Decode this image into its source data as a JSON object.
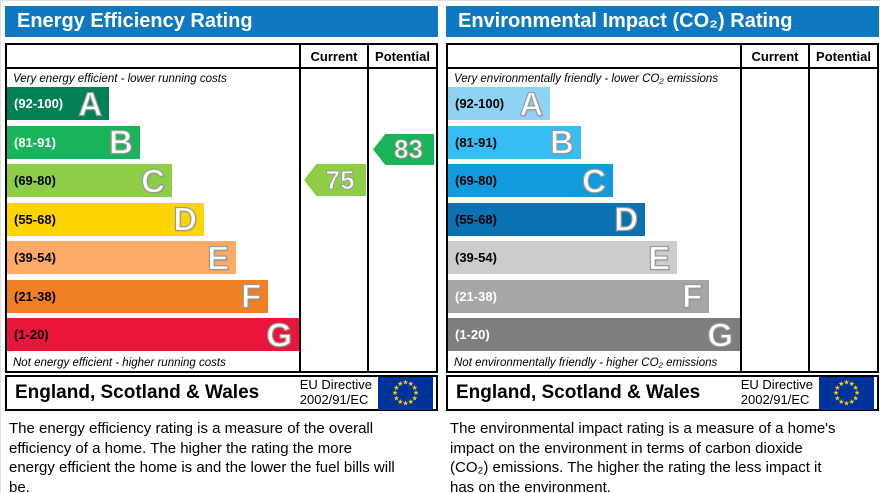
{
  "colors": {
    "header_bg": "#0e79c0",
    "flag_bg": "#003399",
    "flag_star": "#ffcc00",
    "energy_current_arrow": "#8dce46",
    "energy_potential_arrow": "#19b459"
  },
  "panels": {
    "energy": {
      "header": "Energy Efficiency Rating",
      "columns": {
        "current": "Current",
        "potential": "Potential"
      },
      "caption_top": "Very energy efficient - lower running costs",
      "caption_bottom": "Not energy efficient - higher running costs",
      "bands": [
        {
          "letter": "A",
          "label": "(92-100)",
          "color": "#008054",
          "label_color": "#ffffff",
          "width_pct": 35
        },
        {
          "letter": "B",
          "label": "(81-91)",
          "color": "#19b459",
          "label_color": "#ffffff",
          "width_pct": 45.5
        },
        {
          "letter": "C",
          "label": "(69-80)",
          "color": "#8dce46",
          "label_color": "#000000",
          "width_pct": 56.5
        },
        {
          "letter": "D",
          "label": "(55-68)",
          "color": "#ffd500",
          "label_color": "#000000",
          "width_pct": 67.5
        },
        {
          "letter": "E",
          "label": "(39-54)",
          "color": "#fcaa65",
          "label_color": "#000000",
          "width_pct": 78.5
        },
        {
          "letter": "F",
          "label": "(21-38)",
          "color": "#ef8023",
          "label_color": "#000000",
          "width_pct": 89.5
        },
        {
          "letter": "G",
          "label": "(1-20)",
          "color": "#e9153b",
          "label_color": "#000000",
          "width_pct": 100
        }
      ],
      "arrows": {
        "current": {
          "value": "75",
          "color": "#8dce46"
        },
        "potential": {
          "value": "83",
          "color": "#19b459"
        }
      },
      "footer": {
        "region": "England, Scotland & Wales",
        "directive_line1": "EU Directive",
        "directive_line2": "2002/91/EC"
      },
      "description": "The energy efficiency rating is a measure of the overall efficiency of a home. The higher the rating the more energy efficient the home is and the lower the fuel bills will be."
    },
    "environment": {
      "header": "Environmental Impact (CO₂) Rating",
      "columns": {
        "current": "Current",
        "potential": "Potential"
      },
      "caption_top": "Very environmentally friendly - lower CO₂ emissions",
      "caption_bottom": "Not environmentally friendly - higher CO₂ emissions",
      "bands": [
        {
          "letter": "A",
          "label": "(92-100)",
          "color": "#8ed4f2",
          "label_color": "#000000",
          "width_pct": 35
        },
        {
          "letter": "B",
          "label": "(81-91)",
          "color": "#36bef2",
          "label_color": "#000000",
          "width_pct": 45.5
        },
        {
          "letter": "C",
          "label": "(69-80)",
          "color": "#109bdc",
          "label_color": "#000000",
          "width_pct": 56.5
        },
        {
          "letter": "D",
          "label": "(55-68)",
          "color": "#0b72b2",
          "label_color": "#000000",
          "width_pct": 67.5
        },
        {
          "letter": "E",
          "label": "(39-54)",
          "color": "#cccccc",
          "label_color": "#000000",
          "width_pct": 78.5
        },
        {
          "letter": "F",
          "label": "(21-38)",
          "color": "#a6a6a6",
          "label_color": "#ffffff",
          "width_pct": 89.5
        },
        {
          "letter": "G",
          "label": "(1-20)",
          "color": "#7e7e7e",
          "label_color": "#ffffff",
          "width_pct": 100
        }
      ],
      "footer": {
        "region": "England, Scotland & Wales",
        "directive_line1": "EU Directive",
        "directive_line2": "2002/91/EC"
      },
      "description": "The environmental impact rating is a measure of a home's impact on the environment in terms of carbon dioxide (CO₂) emissions. The higher the rating the less impact it has on the environment."
    }
  },
  "chart_data": [
    {
      "type": "bar",
      "title": "Energy Efficiency Rating",
      "categories": [
        "A (92-100)",
        "B (81-91)",
        "C (69-80)",
        "D (55-68)",
        "E (39-54)",
        "F (21-38)",
        "G (1-20)"
      ],
      "values": [
        35,
        45.5,
        56.5,
        67.5,
        78.5,
        89.5,
        100
      ],
      "value_note": "relative bar lengths, % of column width",
      "current": 75,
      "current_band": "C",
      "potential": 83,
      "potential_band": "B",
      "annotations": [
        "Very energy efficient - lower running costs",
        "Not energy efficient - higher running costs"
      ],
      "region": "England, Scotland & Wales",
      "directive": "EU Directive 2002/91/EC"
    },
    {
      "type": "bar",
      "title": "Environmental Impact (CO₂) Rating",
      "categories": [
        "A (92-100)",
        "B (81-91)",
        "C (69-80)",
        "D (55-68)",
        "E (39-54)",
        "F (21-38)",
        "G (1-20)"
      ],
      "values": [
        35,
        45.5,
        56.5,
        67.5,
        78.5,
        89.5,
        100
      ],
      "value_note": "relative bar lengths, % of column width",
      "current": null,
      "potential": null,
      "annotations": [
        "Very environmentally friendly - lower CO₂ emissions",
        "Not environmentally friendly - higher CO₂ emissions"
      ],
      "region": "England, Scotland & Wales",
      "directive": "EU Directive 2002/91/EC"
    }
  ]
}
